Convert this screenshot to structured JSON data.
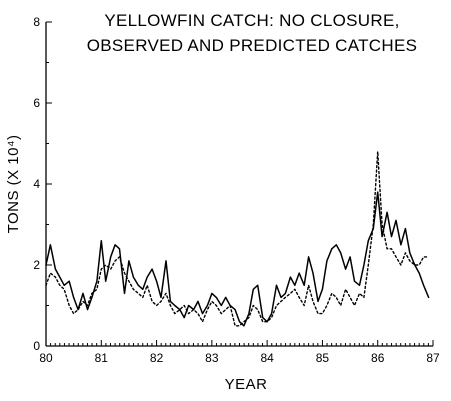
{
  "chart_data": {
    "type": "line",
    "title_lines": [
      "YELLOWFIN CATCH: NO CLOSURE,",
      "OBSERVED AND PREDICTED CATCHES"
    ],
    "xlabel": "YEAR",
    "ylabel": "TONS (X 10⁴)",
    "xlim": [
      80,
      87
    ],
    "ylim": [
      0,
      8
    ],
    "x_ticks": [
      "80",
      "81",
      "82",
      "83",
      "84",
      "85",
      "86",
      "87"
    ],
    "y_ticks": [
      "0",
      "2",
      "4",
      "6",
      "8"
    ],
    "grid": false,
    "legend": "none",
    "series": [
      {
        "style": "solid",
        "x": [
          80.0,
          80.08,
          80.17,
          80.25,
          80.33,
          80.42,
          80.5,
          80.58,
          80.67,
          80.75,
          80.83,
          80.92,
          81.0,
          81.08,
          81.17,
          81.25,
          81.33,
          81.42,
          81.5,
          81.58,
          81.67,
          81.75,
          81.83,
          81.92,
          82.0,
          82.08,
          82.17,
          82.25,
          82.33,
          82.42,
          82.5,
          82.58,
          82.67,
          82.75,
          82.83,
          82.92,
          83.0,
          83.08,
          83.17,
          83.25,
          83.33,
          83.42,
          83.5,
          83.58,
          83.67,
          83.75,
          83.83,
          83.92,
          84.0,
          84.08,
          84.17,
          84.25,
          84.33,
          84.42,
          84.5,
          84.58,
          84.67,
          84.75,
          84.83,
          84.92,
          85.0,
          85.08,
          85.17,
          85.25,
          85.33,
          85.42,
          85.5,
          85.58,
          85.67,
          85.75,
          85.83,
          85.92,
          86.0,
          86.08,
          86.17,
          86.25,
          86.33,
          86.42,
          86.5,
          86.58,
          86.67,
          86.75,
          86.83,
          86.92
        ],
        "values": [
          2.0,
          2.5,
          1.9,
          1.7,
          1.5,
          1.6,
          1.2,
          0.9,
          1.3,
          0.9,
          1.2,
          1.6,
          2.6,
          1.6,
          2.2,
          2.5,
          2.4,
          1.3,
          2.1,
          1.7,
          1.5,
          1.4,
          1.7,
          1.9,
          1.6,
          1.2,
          2.1,
          1.1,
          1.0,
          0.9,
          0.7,
          1.0,
          0.9,
          1.1,
          0.8,
          1.0,
          1.3,
          1.2,
          1.0,
          1.2,
          1.0,
          0.9,
          0.6,
          0.5,
          0.8,
          1.4,
          1.5,
          0.7,
          0.6,
          0.8,
          1.5,
          1.2,
          1.3,
          1.7,
          1.5,
          1.8,
          1.5,
          2.2,
          1.8,
          1.1,
          1.4,
          2.1,
          2.4,
          2.5,
          2.3,
          1.9,
          2.2,
          1.6,
          1.5,
          2.0,
          2.6,
          2.9,
          3.8,
          2.7,
          3.3,
          2.7,
          3.1,
          2.5,
          2.9,
          2.3,
          2.0,
          1.8,
          1.5,
          1.2
        ]
      },
      {
        "style": "dotted",
        "x": [
          80.0,
          80.08,
          80.17,
          80.25,
          80.33,
          80.42,
          80.5,
          80.58,
          80.67,
          80.75,
          80.83,
          80.92,
          81.0,
          81.08,
          81.17,
          81.25,
          81.33,
          81.42,
          81.5,
          81.58,
          81.67,
          81.75,
          81.83,
          81.92,
          82.0,
          82.08,
          82.17,
          82.25,
          82.33,
          82.42,
          82.5,
          82.58,
          82.67,
          82.75,
          82.83,
          82.92,
          83.0,
          83.08,
          83.17,
          83.25,
          83.33,
          83.42,
          83.5,
          83.58,
          83.67,
          83.75,
          83.83,
          83.92,
          84.0,
          84.08,
          84.17,
          84.25,
          84.33,
          84.42,
          84.5,
          84.58,
          84.67,
          84.75,
          84.83,
          84.92,
          85.0,
          85.08,
          85.17,
          85.25,
          85.33,
          85.42,
          85.5,
          85.58,
          85.67,
          85.75,
          85.83,
          85.92,
          86.0,
          86.08,
          86.17,
          86.25,
          86.33,
          86.42,
          86.5,
          86.58,
          86.67,
          86.75,
          86.83,
          86.92
        ],
        "values": [
          1.5,
          1.8,
          1.7,
          1.5,
          1.4,
          1.0,
          0.8,
          0.9,
          1.1,
          1.0,
          1.3,
          1.4,
          1.9,
          2.0,
          1.9,
          2.1,
          2.2,
          1.8,
          1.6,
          1.4,
          1.3,
          1.2,
          1.5,
          1.1,
          1.0,
          1.1,
          1.3,
          1.0,
          0.8,
          0.9,
          1.0,
          0.8,
          0.9,
          0.8,
          0.6,
          0.9,
          1.1,
          1.0,
          0.8,
          0.9,
          1.0,
          0.5,
          0.5,
          0.6,
          0.7,
          1.0,
          0.9,
          0.6,
          0.6,
          0.7,
          1.0,
          1.1,
          1.2,
          1.3,
          1.4,
          1.2,
          1.0,
          1.5,
          1.1,
          0.8,
          0.8,
          1.0,
          1.3,
          1.2,
          1.0,
          1.4,
          1.2,
          1.0,
          1.3,
          1.2,
          2.0,
          3.0,
          4.8,
          3.0,
          2.4,
          2.4,
          2.2,
          2.0,
          2.3,
          2.1,
          2.0,
          2.0,
          2.2,
          2.2
        ]
      }
    ]
  }
}
